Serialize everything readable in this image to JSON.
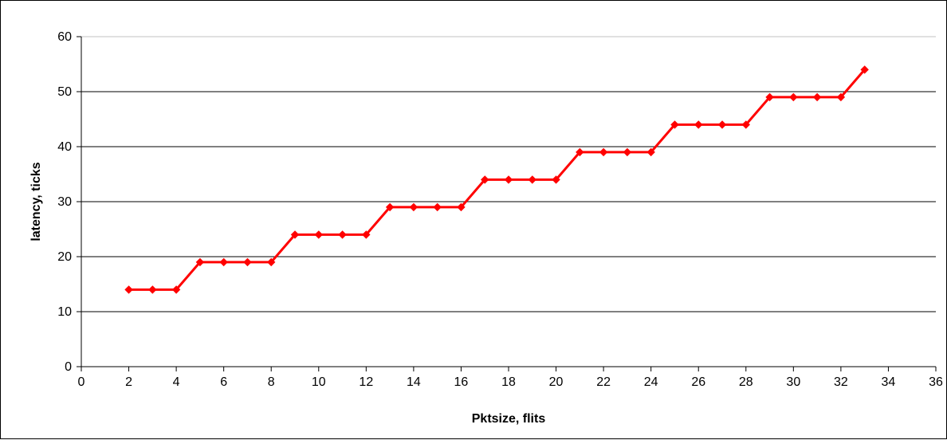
{
  "chart_data": {
    "type": "line",
    "title": "",
    "xlabel": "Pktsize, flits",
    "ylabel": "latency, ticks",
    "xlim": [
      0,
      36
    ],
    "ylim": [
      0,
      60
    ],
    "x_ticks": [
      0,
      2,
      4,
      6,
      8,
      10,
      12,
      14,
      16,
      18,
      20,
      22,
      24,
      26,
      28,
      30,
      32,
      34,
      36
    ],
    "y_ticks": [
      0,
      10,
      20,
      30,
      40,
      50,
      60
    ],
    "grid": "horizontal major gridlines",
    "legend": "none",
    "series": [
      {
        "color": "#ff0000",
        "marker": "diamond",
        "x": [
          2,
          3,
          4,
          5,
          6,
          7,
          8,
          9,
          10,
          11,
          12,
          13,
          14,
          15,
          16,
          17,
          18,
          19,
          20,
          21,
          22,
          23,
          24,
          25,
          26,
          27,
          28,
          29,
          30,
          31,
          32,
          33
        ],
        "y": [
          14,
          14,
          14,
          19,
          19,
          19,
          19,
          24,
          24,
          24,
          24,
          29,
          29,
          29,
          29,
          34,
          34,
          34,
          34,
          39,
          39,
          39,
          39,
          44,
          44,
          44,
          44,
          49,
          49,
          49,
          49,
          54
        ]
      }
    ]
  }
}
